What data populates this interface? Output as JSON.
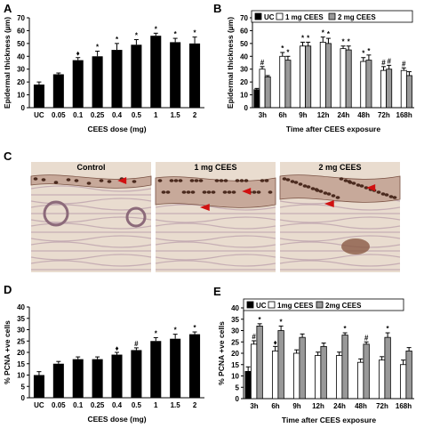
{
  "panel_letters": [
    "A",
    "B",
    "C",
    "D",
    "E"
  ],
  "colors": {
    "uc": "#000000",
    "low": "#ffffff",
    "high": "#999999",
    "bar_dark": "#000000",
    "tissue_bg": "#e9dccf",
    "nuclei": "#4a2a1e"
  },
  "histology": {
    "labels": [
      "Control",
      "1 mg CEES",
      "2 mg CEES"
    ],
    "arrow_color": "#d01010"
  },
  "chart_data": [
    {
      "id": "A",
      "type": "bar",
      "categories": [
        "UC",
        "0.05",
        "0.1",
        "0.25",
        "0.4",
        "0.5",
        "1",
        "1.5",
        "2"
      ],
      "values": [
        18,
        26,
        37,
        40,
        45,
        49,
        56,
        51,
        50
      ],
      "errors": [
        2,
        1,
        2,
        4,
        5,
        4,
        2,
        3,
        5
      ],
      "annotations": [
        "",
        "",
        "♦",
        "*",
        "*",
        "*",
        "*",
        "*",
        "*"
      ],
      "xlabel": "CEES dose (mg)",
      "ylabel": "Epidermal thickness (µm)",
      "ylim": [
        0,
        70
      ],
      "yticks": [
        0,
        10,
        20,
        30,
        40,
        50,
        60,
        70
      ]
    },
    {
      "id": "B",
      "type": "bar",
      "categories": [
        "3h",
        "6h",
        "9h",
        "12h",
        "24h",
        "48h",
        "72h",
        "168h"
      ],
      "series": [
        {
          "name": "UC",
          "values": [
            14,
            null,
            null,
            null,
            null,
            null,
            null,
            null
          ],
          "errors": [
            1,
            null,
            null,
            null,
            null,
            null,
            null,
            null
          ]
        },
        {
          "name": "1 mg CEES",
          "values": [
            30,
            40,
            48,
            51,
            46,
            36,
            29,
            29
          ],
          "errors": [
            2,
            3,
            3,
            4,
            2,
            3,
            3,
            2
          ]
        },
        {
          "name": "2 mg CEES",
          "values": [
            24,
            37,
            48,
            50,
            45,
            37,
            30,
            25
          ],
          "errors": [
            1,
            3,
            3,
            4,
            3,
            4,
            3,
            3
          ]
        }
      ],
      "annotations_low": [
        "#",
        "*",
        "*",
        "*",
        "*",
        "*",
        "#",
        "#"
      ],
      "annotations_high": [
        "",
        "*",
        "*",
        "*",
        "*",
        "*",
        "#",
        ""
      ],
      "xlabel": "Time after CEES exposure",
      "ylabel": "Epidermal thickness (µm)",
      "ylim": [
        0,
        70
      ],
      "yticks": [
        0,
        10,
        20,
        30,
        40,
        50,
        60,
        70
      ],
      "legend_position": "top"
    },
    {
      "id": "D",
      "type": "bar",
      "categories": [
        "UC",
        "0.05",
        "0.1",
        "0.25",
        "0.4",
        "0.5",
        "1",
        "1.5",
        "2"
      ],
      "values": [
        10,
        15,
        17,
        17,
        19,
        21,
        25,
        26,
        28
      ],
      "errors": [
        1.5,
        1,
        1,
        1,
        1,
        1,
        1.5,
        2,
        1
      ],
      "annotations": [
        "",
        "",
        "",
        "",
        "♦",
        "#",
        "*",
        "*",
        "*"
      ],
      "xlabel": "CEES dose (mg)",
      "ylabel": "% PCNA +ve  cells",
      "ylim": [
        0,
        40
      ],
      "yticks": [
        0,
        5,
        10,
        15,
        20,
        25,
        30,
        35,
        40
      ]
    },
    {
      "id": "E",
      "type": "bar",
      "categories": [
        "3h",
        "6h",
        "9h",
        "12h",
        "24h",
        "48h",
        "72h",
        "168h"
      ],
      "series": [
        {
          "name": "UC",
          "values": [
            12,
            null,
            null,
            null,
            null,
            null,
            null,
            null
          ],
          "errors": [
            2,
            null,
            null,
            null,
            null,
            null,
            null,
            null
          ]
        },
        {
          "name": "1mg CEES",
          "values": [
            24,
            21,
            20,
            19,
            19,
            16,
            17,
            15
          ],
          "errors": [
            1.5,
            2,
            1.5,
            1.5,
            1.5,
            1.5,
            1.5,
            2
          ]
        },
        {
          "name": "2mg CEES",
          "values": [
            32,
            30,
            27,
            23,
            28,
            24,
            27,
            21
          ],
          "errors": [
            1,
            2,
            1.5,
            1.5,
            1,
            1,
            2,
            1.5
          ]
        }
      ],
      "annotations_low": [
        "#",
        "♦",
        "",
        "",
        "",
        "",
        "",
        ""
      ],
      "annotations_high": [
        "*",
        "*",
        "",
        "",
        "*",
        "#",
        "*",
        ""
      ],
      "xlabel": "Time after CEES exposure",
      "ylabel": "% PCNA +ve cells",
      "ylim": [
        0,
        40
      ],
      "yticks": [
        0,
        5,
        10,
        15,
        20,
        25,
        30,
        35,
        40
      ],
      "legend_position": "top"
    }
  ]
}
